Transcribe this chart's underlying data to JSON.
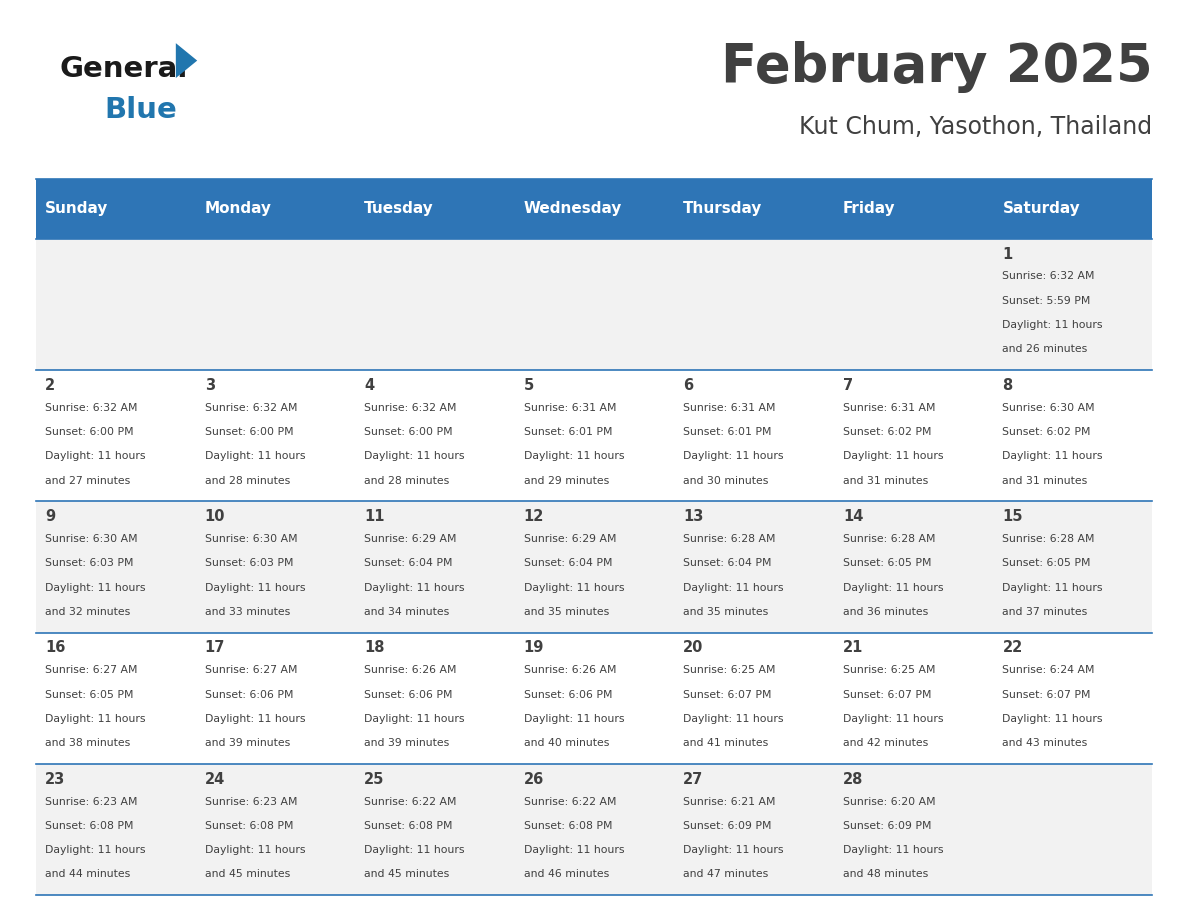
{
  "title": "February 2025",
  "subtitle": "Kut Chum, Yasothon, Thailand",
  "days_of_week": [
    "Sunday",
    "Monday",
    "Tuesday",
    "Wednesday",
    "Thursday",
    "Friday",
    "Saturday"
  ],
  "header_bg": "#2E75B6",
  "header_text": "#FFFFFF",
  "cell_bg_even": "#F2F2F2",
  "cell_bg_odd": "#FFFFFF",
  "border_color": "#2E75B6",
  "text_color": "#404040",
  "title_color": "#404040",
  "logo_general_color": "#1a1a1a",
  "logo_blue_color": "#2176AE",
  "calendar_data": [
    {
      "day": 1,
      "col": 6,
      "row": 0,
      "sunrise": "6:32 AM",
      "sunset": "5:59 PM",
      "daylight": "11 hours and 26 minutes"
    },
    {
      "day": 2,
      "col": 0,
      "row": 1,
      "sunrise": "6:32 AM",
      "sunset": "6:00 PM",
      "daylight": "11 hours and 27 minutes"
    },
    {
      "day": 3,
      "col": 1,
      "row": 1,
      "sunrise": "6:32 AM",
      "sunset": "6:00 PM",
      "daylight": "11 hours and 28 minutes"
    },
    {
      "day": 4,
      "col": 2,
      "row": 1,
      "sunrise": "6:32 AM",
      "sunset": "6:00 PM",
      "daylight": "11 hours and 28 minutes"
    },
    {
      "day": 5,
      "col": 3,
      "row": 1,
      "sunrise": "6:31 AM",
      "sunset": "6:01 PM",
      "daylight": "11 hours and 29 minutes"
    },
    {
      "day": 6,
      "col": 4,
      "row": 1,
      "sunrise": "6:31 AM",
      "sunset": "6:01 PM",
      "daylight": "11 hours and 30 minutes"
    },
    {
      "day": 7,
      "col": 5,
      "row": 1,
      "sunrise": "6:31 AM",
      "sunset": "6:02 PM",
      "daylight": "11 hours and 31 minutes"
    },
    {
      "day": 8,
      "col": 6,
      "row": 1,
      "sunrise": "6:30 AM",
      "sunset": "6:02 PM",
      "daylight": "11 hours and 31 minutes"
    },
    {
      "day": 9,
      "col": 0,
      "row": 2,
      "sunrise": "6:30 AM",
      "sunset": "6:03 PM",
      "daylight": "11 hours and 32 minutes"
    },
    {
      "day": 10,
      "col": 1,
      "row": 2,
      "sunrise": "6:30 AM",
      "sunset": "6:03 PM",
      "daylight": "11 hours and 33 minutes"
    },
    {
      "day": 11,
      "col": 2,
      "row": 2,
      "sunrise": "6:29 AM",
      "sunset": "6:04 PM",
      "daylight": "11 hours and 34 minutes"
    },
    {
      "day": 12,
      "col": 3,
      "row": 2,
      "sunrise": "6:29 AM",
      "sunset": "6:04 PM",
      "daylight": "11 hours and 35 minutes"
    },
    {
      "day": 13,
      "col": 4,
      "row": 2,
      "sunrise": "6:28 AM",
      "sunset": "6:04 PM",
      "daylight": "11 hours and 35 minutes"
    },
    {
      "day": 14,
      "col": 5,
      "row": 2,
      "sunrise": "6:28 AM",
      "sunset": "6:05 PM",
      "daylight": "11 hours and 36 minutes"
    },
    {
      "day": 15,
      "col": 6,
      "row": 2,
      "sunrise": "6:28 AM",
      "sunset": "6:05 PM",
      "daylight": "11 hours and 37 minutes"
    },
    {
      "day": 16,
      "col": 0,
      "row": 3,
      "sunrise": "6:27 AM",
      "sunset": "6:05 PM",
      "daylight": "11 hours and 38 minutes"
    },
    {
      "day": 17,
      "col": 1,
      "row": 3,
      "sunrise": "6:27 AM",
      "sunset": "6:06 PM",
      "daylight": "11 hours and 39 minutes"
    },
    {
      "day": 18,
      "col": 2,
      "row": 3,
      "sunrise": "6:26 AM",
      "sunset": "6:06 PM",
      "daylight": "11 hours and 39 minutes"
    },
    {
      "day": 19,
      "col": 3,
      "row": 3,
      "sunrise": "6:26 AM",
      "sunset": "6:06 PM",
      "daylight": "11 hours and 40 minutes"
    },
    {
      "day": 20,
      "col": 4,
      "row": 3,
      "sunrise": "6:25 AM",
      "sunset": "6:07 PM",
      "daylight": "11 hours and 41 minutes"
    },
    {
      "day": 21,
      "col": 5,
      "row": 3,
      "sunrise": "6:25 AM",
      "sunset": "6:07 PM",
      "daylight": "11 hours and 42 minutes"
    },
    {
      "day": 22,
      "col": 6,
      "row": 3,
      "sunrise": "6:24 AM",
      "sunset": "6:07 PM",
      "daylight": "11 hours and 43 minutes"
    },
    {
      "day": 23,
      "col": 0,
      "row": 4,
      "sunrise": "6:23 AM",
      "sunset": "6:08 PM",
      "daylight": "11 hours and 44 minutes"
    },
    {
      "day": 24,
      "col": 1,
      "row": 4,
      "sunrise": "6:23 AM",
      "sunset": "6:08 PM",
      "daylight": "11 hours and 45 minutes"
    },
    {
      "day": 25,
      "col": 2,
      "row": 4,
      "sunrise": "6:22 AM",
      "sunset": "6:08 PM",
      "daylight": "11 hours and 45 minutes"
    },
    {
      "day": 26,
      "col": 3,
      "row": 4,
      "sunrise": "6:22 AM",
      "sunset": "6:08 PM",
      "daylight": "11 hours and 46 minutes"
    },
    {
      "day": 27,
      "col": 4,
      "row": 4,
      "sunrise": "6:21 AM",
      "sunset": "6:09 PM",
      "daylight": "11 hours and 47 minutes"
    },
    {
      "day": 28,
      "col": 5,
      "row": 4,
      "sunrise": "6:20 AM",
      "sunset": "6:09 PM",
      "daylight": "11 hours and 48 minutes"
    }
  ]
}
